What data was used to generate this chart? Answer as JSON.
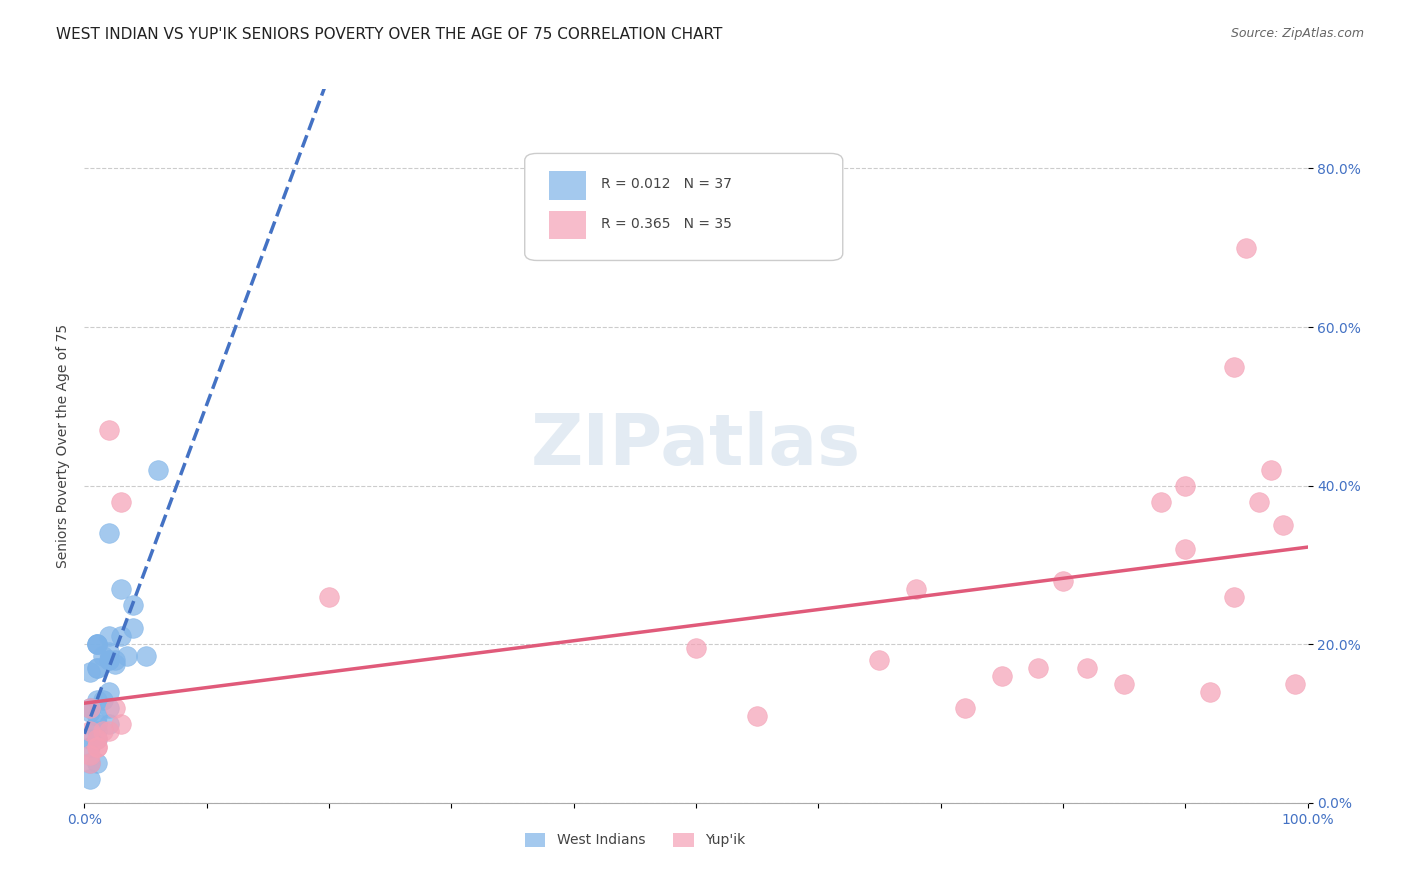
{
  "title": "WEST INDIAN VS YUP'IK SENIORS POVERTY OVER THE AGE OF 75 CORRELATION CHART",
  "source": "Source: ZipAtlas.com",
  "ylabel": "Seniors Poverty Over the Age of 75",
  "xlabel": "",
  "watermark": "ZIPatlas",
  "xlim": [
    0.0,
    1.0
  ],
  "ylim": [
    0.0,
    0.9
  ],
  "xticks": [
    0.0,
    0.1,
    0.2,
    0.3,
    0.4,
    0.5,
    0.6,
    0.7,
    0.8,
    0.9,
    1.0
  ],
  "yticks": [
    0.0,
    0.2,
    0.4,
    0.6,
    0.8
  ],
  "ytick_labels": [
    "0.0%",
    "20.0%",
    "40.0%",
    "60.0%",
    "80.0%"
  ],
  "xtick_labels": [
    "0.0%",
    "",
    "",
    "",
    "",
    "",
    "",
    "",
    "",
    "",
    "100.0%"
  ],
  "west_indian_color": "#7eb3e8",
  "yupik_color": "#f4a0b5",
  "west_indian_line_color": "#4472c4",
  "yupik_line_color": "#e05a7a",
  "R_west_indian": 0.012,
  "N_west_indian": 37,
  "R_yupik": 0.365,
  "N_yupik": 35,
  "west_indian_x": [
    0.02,
    0.03,
    0.04,
    0.02,
    0.01,
    0.01,
    0.02,
    0.02,
    0.01,
    0.015,
    0.025,
    0.03,
    0.01,
    0.005,
    0.005,
    0.01,
    0.015,
    0.01,
    0.02,
    0.02,
    0.02,
    0.04,
    0.035,
    0.025,
    0.05,
    0.06,
    0.02,
    0.01,
    0.01,
    0.01,
    0.005,
    0.005,
    0.005,
    0.01,
    0.01,
    0.005,
    0.005
  ],
  "west_indian_y": [
    0.18,
    0.27,
    0.25,
    0.34,
    0.2,
    0.2,
    0.19,
    0.18,
    0.2,
    0.185,
    0.175,
    0.21,
    0.17,
    0.165,
    0.115,
    0.13,
    0.13,
    0.09,
    0.14,
    0.12,
    0.1,
    0.22,
    0.185,
    0.18,
    0.185,
    0.42,
    0.21,
    0.17,
    0.08,
    0.05,
    0.05,
    0.07,
    0.12,
    0.11,
    0.1,
    0.08,
    0.03
  ],
  "yupik_x": [
    0.02,
    0.025,
    0.02,
    0.01,
    0.03,
    0.03,
    0.015,
    0.01,
    0.01,
    0.005,
    0.005,
    0.005,
    0.005,
    0.2,
    0.5,
    0.55,
    0.65,
    0.68,
    0.72,
    0.75,
    0.78,
    0.8,
    0.82,
    0.85,
    0.88,
    0.9,
    0.9,
    0.92,
    0.94,
    0.94,
    0.95,
    0.96,
    0.97,
    0.98,
    0.99
  ],
  "yupik_y": [
    0.47,
    0.12,
    0.09,
    0.07,
    0.1,
    0.38,
    0.09,
    0.08,
    0.07,
    0.05,
    0.06,
    0.12,
    0.09,
    0.26,
    0.195,
    0.11,
    0.18,
    0.27,
    0.12,
    0.16,
    0.17,
    0.28,
    0.17,
    0.15,
    0.38,
    0.4,
    0.32,
    0.14,
    0.26,
    0.55,
    0.7,
    0.38,
    0.42,
    0.35,
    0.15
  ],
  "background_color": "#ffffff",
  "tick_color": "#4472c4",
  "grid_color": "#cccccc",
  "title_fontsize": 11,
  "axis_label_fontsize": 10,
  "tick_fontsize": 10
}
